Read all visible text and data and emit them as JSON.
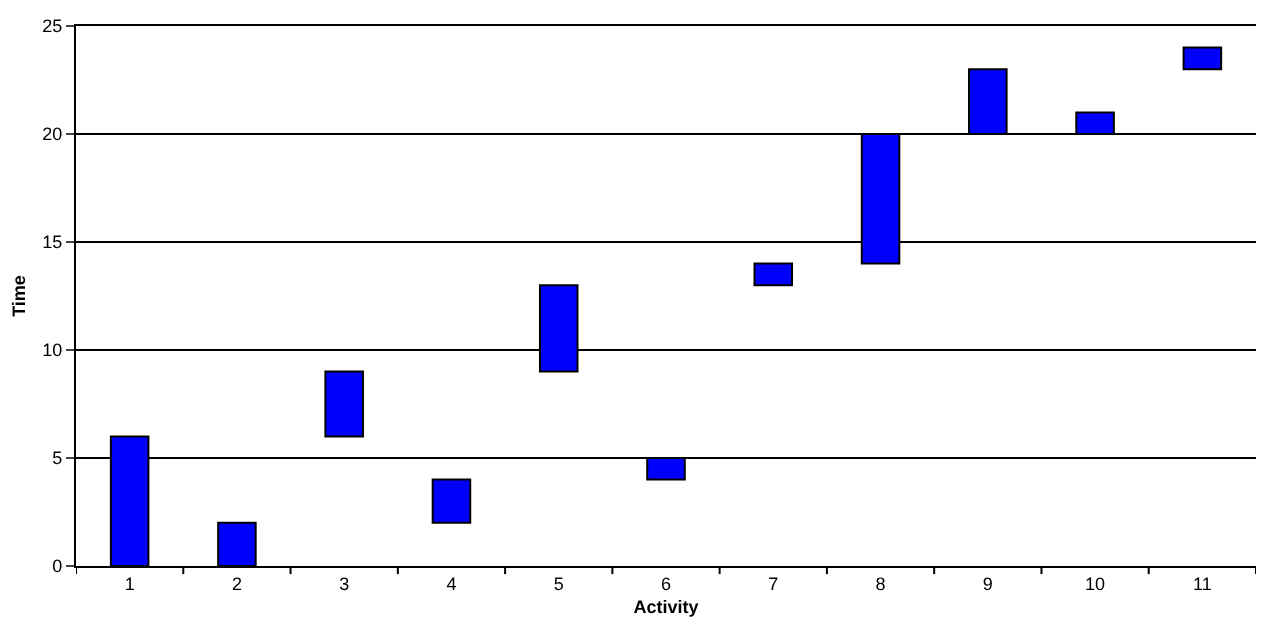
{
  "chart_data": {
    "type": "bar",
    "xlabel": "Activity",
    "ylabel": "Time",
    "categories": [
      "1",
      "2",
      "3",
      "4",
      "5",
      "6",
      "7",
      "8",
      "9",
      "10",
      "11"
    ],
    "base": [
      0,
      0,
      6,
      2,
      9,
      4,
      13,
      14,
      20,
      20,
      23
    ],
    "values": [
      6,
      2,
      3,
      2,
      4,
      1,
      1,
      6,
      3,
      1,
      1
    ],
    "color": "#0000ff",
    "ylim": [
      0,
      25
    ],
    "yticks": [
      0,
      5,
      10,
      15,
      20,
      25
    ],
    "grid": "y"
  }
}
